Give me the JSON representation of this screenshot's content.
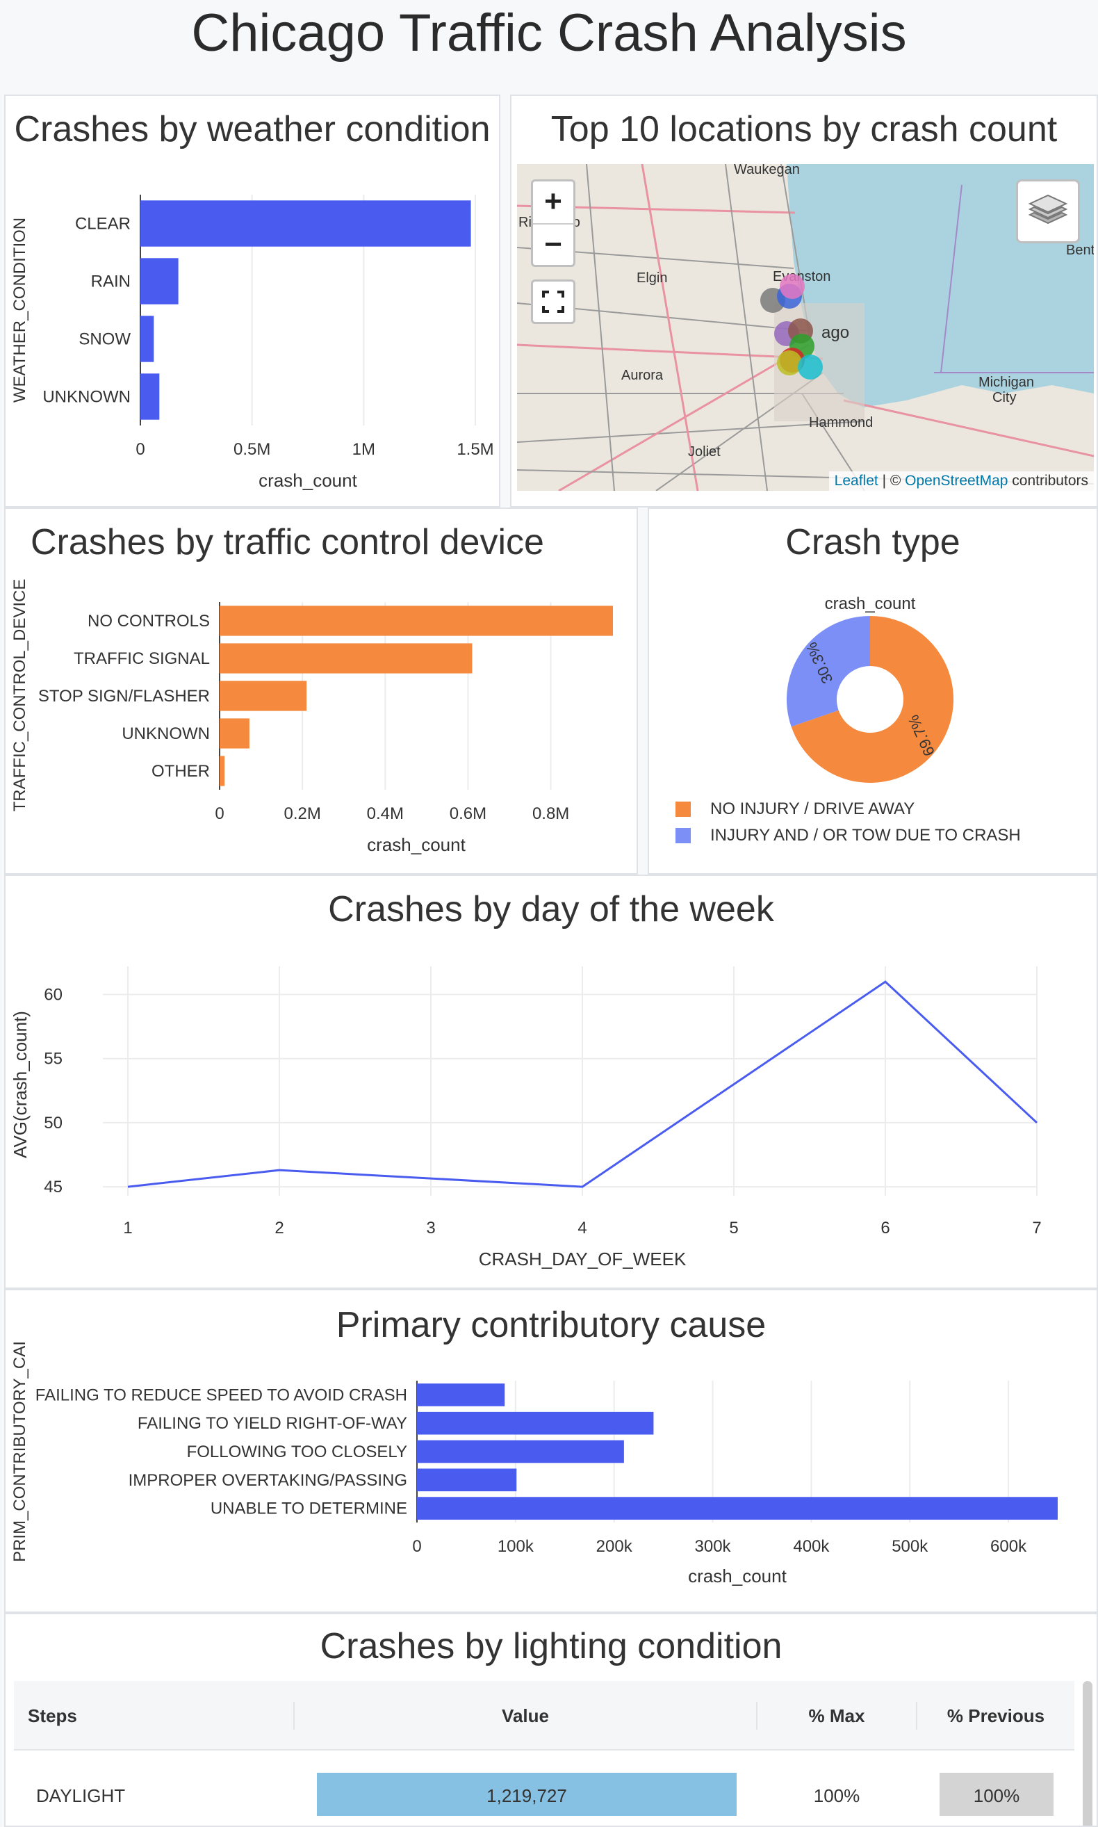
{
  "page": {
    "title": "Chicago Traffic Crash Analysis"
  },
  "weather": {
    "title": "Crashes by weather condition",
    "chart_data": {
      "type": "bar",
      "orientation": "horizontal",
      "title": "Crashes by weather condition",
      "ylabel": "WEATHER_CONDITION",
      "xlabel": "crash_count",
      "categories": [
        "CLEAR",
        "RAIN",
        "SNOW",
        "UNKNOWN"
      ],
      "values": [
        1480000,
        170000,
        60000,
        85000
      ],
      "xlim": [
        0,
        1500000
      ],
      "xticks": [
        0,
        500000,
        1000000,
        1500000
      ],
      "xtick_labels": [
        "0",
        "0.5M",
        "1M",
        "1.5M"
      ],
      "color": "#4a5cf0",
      "grid": true
    }
  },
  "map": {
    "title": "Top 10 locations by crash count",
    "zoom_in": "+",
    "zoom_out": "−",
    "attribution_leaflet": "Leaflet",
    "attribution_sep": " | © ",
    "attribution_osm": "OpenStreetMap",
    "attribution_tail": " contributors",
    "place_labels": [
      "Waukegan",
      "Ri... nship",
      "Evanston",
      "Elgin",
      "ago",
      "Aurora",
      "Michigan City",
      "Hammond",
      "Joliet",
      "Bent"
    ],
    "marker_colors": [
      "#7a7a7a",
      "#3a64d8",
      "#e377c2",
      "#9467bd",
      "#8c564b",
      "#2ca02c",
      "#d62728",
      "#bcbd22",
      "#17becf"
    ]
  },
  "traffic": {
    "title": "Crashes by traffic control device",
    "chart_data": {
      "type": "bar",
      "orientation": "horizontal",
      "title": "Crashes by traffic control device",
      "ylabel": "TRAFFIC_CONTROL_DEVICE",
      "xlabel": "crash_count",
      "categories": [
        "NO CONTROLS",
        "TRAFFIC SIGNAL",
        "STOP SIGN/FLASHER",
        "UNKNOWN",
        "OTHER"
      ],
      "values": [
        950000,
        610000,
        210000,
        72000,
        12000
      ],
      "xlim": [
        0,
        950000
      ],
      "xticks": [
        0,
        200000,
        400000,
        600000,
        800000
      ],
      "xtick_labels": [
        "0",
        "0.2M",
        "0.4M",
        "0.6M",
        "0.8M"
      ],
      "color": "#f5893d",
      "grid": true
    }
  },
  "crash_type": {
    "title": "Crash type",
    "chart_data": {
      "type": "pie",
      "donut": true,
      "subtitle": "crash_count",
      "slices": [
        {
          "label": "NO INJURY / DRIVE AWAY",
          "value": 69.7,
          "text": "69.7%",
          "color": "#f5893d"
        },
        {
          "label": "INJURY AND / OR TOW DUE TO CRASH",
          "value": 30.3,
          "text": "30.3%",
          "color": "#7b8ff7"
        }
      ],
      "legend_position": "bottom"
    }
  },
  "day_of_week": {
    "title": "Crashes by day of the week",
    "chart_data": {
      "type": "line",
      "title": "Crashes by day of the week",
      "xlabel": "CRASH_DAY_OF_WEEK",
      "ylabel": "AVG(crash_count)",
      "x": [
        1,
        2,
        4,
        6,
        7
      ],
      "y": [
        45,
        46.3,
        45,
        61,
        50
      ],
      "xticks": [
        1,
        2,
        3,
        4,
        5,
        6,
        7
      ],
      "yticks": [
        45,
        50,
        55,
        60
      ],
      "xlim": [
        1,
        7
      ],
      "ylim": [
        44.3,
        62.2
      ],
      "color": "#4a5cf0",
      "grid": true
    }
  },
  "cause": {
    "title": "Primary contributory cause",
    "chart_data": {
      "type": "bar",
      "orientation": "horizontal",
      "title": "Primary contributory cause",
      "ylabel": "PRIM_CONTRIBUTORY_CAI",
      "xlabel": "crash_count",
      "categories": [
        "FAILING TO REDUCE SPEED TO AVOID CRASH",
        "FAILING TO YIELD RIGHT-OF-WAY",
        "FOLLOWING TOO CLOSELY",
        "IMPROPER OVERTAKING/PASSING",
        "UNABLE TO DETERMINE"
      ],
      "values": [
        89000,
        240000,
        210000,
        101000,
        650000
      ],
      "xlim": [
        0,
        650000
      ],
      "xticks": [
        0,
        100000,
        200000,
        300000,
        400000,
        500000,
        600000
      ],
      "xtick_labels": [
        "0",
        "100k",
        "200k",
        "300k",
        "400k",
        "500k",
        "600k"
      ],
      "color": "#4a5cf0",
      "grid": true
    }
  },
  "lighting": {
    "title": "Crashes by lighting condition",
    "columns": [
      "Steps",
      "Value",
      "% Max",
      "% Previous"
    ],
    "rows": [
      {
        "step": "DAYLIGHT",
        "value": "1,219,727",
        "pct_max": "100%",
        "pct_prev": "100%",
        "fill": 1.0
      }
    ],
    "colors": {
      "value_bar": "#86c1e3",
      "prev_bar": "#d4d4d4"
    }
  }
}
